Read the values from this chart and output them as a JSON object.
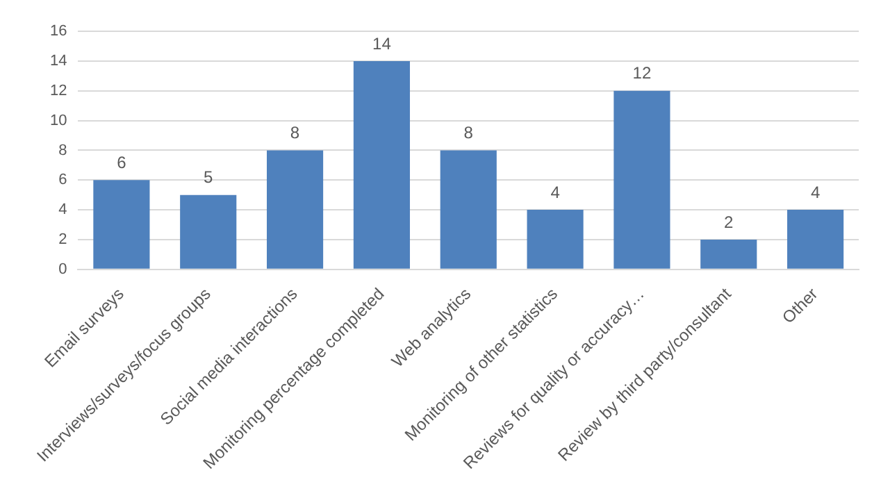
{
  "chart_data": {
    "type": "bar",
    "categories": [
      "Email surveys",
      "Interviews/surveys/focus groups",
      "Social media interactions",
      "Monitoring percentage completed",
      "Web analytics",
      "Monitoring of other statistics",
      "Reviews for quality or accuracy…",
      "Review by third party/consultant",
      "Other"
    ],
    "values": [
      6,
      5,
      8,
      14,
      8,
      4,
      12,
      2,
      4
    ],
    "color": "#4f81bd",
    "ylim": [
      0,
      16
    ],
    "yticks": [
      0,
      2,
      4,
      6,
      8,
      10,
      12,
      14,
      16
    ],
    "grid": "y",
    "data_labels": true
  }
}
